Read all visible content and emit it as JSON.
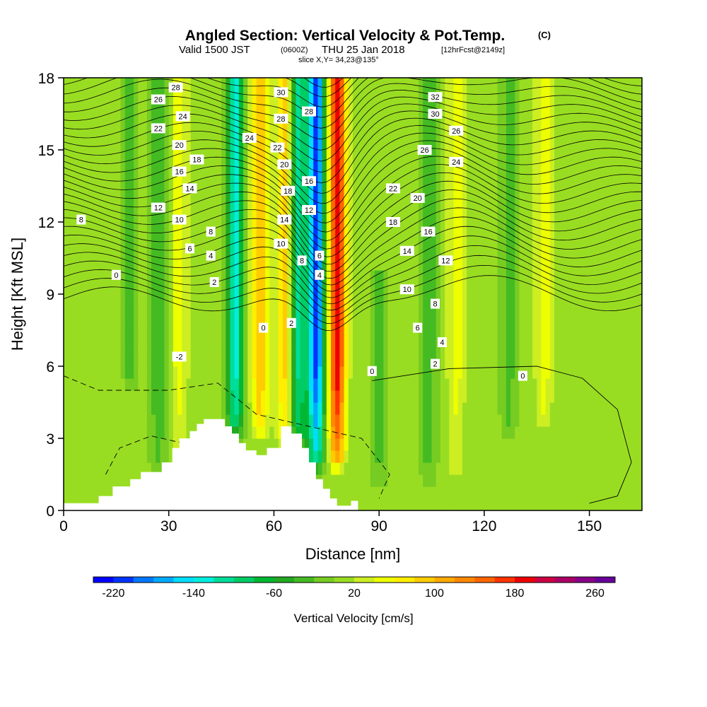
{
  "chart_data": {
    "type": "heatmap",
    "title": "Angled Section: Vertical Velocity & Pot.Temp.",
    "title_unit": "(C)",
    "subtitle_main": "Valid 1500 JST",
    "subtitle_zulu": "(0600Z)",
    "subtitle_date": "THU 25 Jan 2018",
    "subtitle_fcst": "[12hrFcst@2149z]",
    "subtitle_slice": "slice X,Y= 34,23@135°",
    "xlabel": "Distance [nm]",
    "ylabel": "Height [Kft MSL]",
    "xlim": [
      0,
      165
    ],
    "ylim": [
      0,
      18
    ],
    "x_ticks": [
      0,
      30,
      60,
      90,
      120,
      150
    ],
    "y_ticks": [
      0,
      3,
      6,
      9,
      12,
      15,
      18
    ],
    "colorbar": {
      "label": "Vertical Velocity [cm/s]",
      "min": -240,
      "max": 280,
      "step": 20,
      "tick_values": [
        -220,
        -140,
        -60,
        20,
        100,
        180,
        260
      ],
      "colors": [
        "#0000ff",
        "#0033ff",
        "#0077ff",
        "#00aaff",
        "#00ddff",
        "#00eedd",
        "#00dd99",
        "#00cc66",
        "#00b833",
        "#22aa22",
        "#44bb22",
        "#77cc22",
        "#99dd22",
        "#ccee22",
        "#eeff00",
        "#ffee00",
        "#ffcc00",
        "#ffaa00",
        "#ff8800",
        "#ff6600",
        "#ff3300",
        "#ee0000",
        "#cc0044",
        "#aa0066",
        "#880088",
        "#660099"
      ]
    },
    "velocity_features": [
      {
        "x": 72,
        "y_bottom": 2.5,
        "y_top": 18,
        "peak": -220
      },
      {
        "x": 78,
        "y_bottom": 2.5,
        "y_top": 18,
        "peak": 190
      },
      {
        "x": 49,
        "y_bottom": 3.8,
        "y_top": 18,
        "peak": -140
      },
      {
        "x": 56,
        "y_bottom": 3.8,
        "y_top": 18,
        "peak": 90
      },
      {
        "x": 67,
        "y_bottom": 3.5,
        "y_top": 18,
        "peak": -120
      },
      {
        "x": 63,
        "y_bottom": 3.5,
        "y_top": 18,
        "peak": 80
      },
      {
        "x": 27,
        "y_bottom": 2.5,
        "y_top": 18,
        "peak": -50
      },
      {
        "x": 33,
        "y_bottom": 2.5,
        "y_top": 18,
        "peak": 40
      },
      {
        "x": 19,
        "y_bottom": 6,
        "y_top": 18,
        "peak": -40
      },
      {
        "x": 90,
        "y_bottom": 2,
        "y_top": 10,
        "peak": -50
      },
      {
        "x": 104,
        "y_bottom": 2,
        "y_top": 18,
        "peak": -50
      },
      {
        "x": 112,
        "y_bottom": 2,
        "y_top": 18,
        "peak": 40
      },
      {
        "x": 127,
        "y_bottom": 4,
        "y_top": 18,
        "peak": -40
      },
      {
        "x": 137,
        "y_bottom": 4,
        "y_top": 18,
        "peak": 40
      }
    ],
    "terrain_profile": [
      [
        0,
        0.3
      ],
      [
        10,
        0.3
      ],
      [
        10,
        0.6
      ],
      [
        14,
        0.6
      ],
      [
        14,
        1.0
      ],
      [
        19,
        1.0
      ],
      [
        19,
        1.3
      ],
      [
        22,
        1.3
      ],
      [
        22,
        1.6
      ],
      [
        28,
        1.6
      ],
      [
        28,
        2.0
      ],
      [
        31,
        2.0
      ],
      [
        31,
        2.6
      ],
      [
        33,
        2.6
      ],
      [
        33,
        3.0
      ],
      [
        36,
        3.0
      ],
      [
        36,
        3.3
      ],
      [
        38,
        3.3
      ],
      [
        38,
        3.6
      ],
      [
        40,
        3.6
      ],
      [
        40,
        3.8
      ],
      [
        46,
        3.8
      ],
      [
        46,
        3.5
      ],
      [
        48,
        3.5
      ],
      [
        48,
        3.2
      ],
      [
        50,
        3.2
      ],
      [
        50,
        2.8
      ],
      [
        52,
        2.8
      ],
      [
        52,
        2.5
      ],
      [
        55,
        2.5
      ],
      [
        55,
        2.3
      ],
      [
        58,
        2.3
      ],
      [
        58,
        2.6
      ],
      [
        62,
        2.6
      ],
      [
        62,
        3.5
      ],
      [
        65,
        3.5
      ],
      [
        65,
        3.2
      ],
      [
        68,
        3.2
      ],
      [
        68,
        2.6
      ],
      [
        70,
        2.6
      ],
      [
        70,
        2.0
      ],
      [
        72,
        2.0
      ],
      [
        72,
        1.3
      ],
      [
        74,
        1.3
      ],
      [
        74,
        0.9
      ],
      [
        76,
        0.9
      ],
      [
        76,
        0.5
      ],
      [
        78,
        0.5
      ],
      [
        78,
        0.2
      ],
      [
        82,
        0.2
      ],
      [
        82,
        0.4
      ],
      [
        84,
        0.4
      ],
      [
        84,
        0
      ],
      [
        165,
        0
      ]
    ],
    "isotherm_labels": [
      {
        "text": "28",
        "x": 32,
        "y": 17.6
      },
      {
        "text": "26",
        "x": 27,
        "y": 17.1
      },
      {
        "text": "24",
        "x": 34,
        "y": 16.4
      },
      {
        "text": "22",
        "x": 27,
        "y": 15.9
      },
      {
        "text": "20",
        "x": 33,
        "y": 15.2
      },
      {
        "text": "18",
        "x": 38,
        "y": 14.6
      },
      {
        "text": "16",
        "x": 33,
        "y": 14.1
      },
      {
        "text": "14",
        "x": 36,
        "y": 13.4
      },
      {
        "text": "12",
        "x": 27,
        "y": 12.6
      },
      {
        "text": "10",
        "x": 33,
        "y": 12.1
      },
      {
        "text": "8",
        "x": 5,
        "y": 12.1
      },
      {
        "text": "8",
        "x": 42,
        "y": 11.6
      },
      {
        "text": "6",
        "x": 36,
        "y": 10.9
      },
      {
        "text": "4",
        "x": 42,
        "y": 10.6
      },
      {
        "text": "2",
        "x": 43,
        "y": 9.5
      },
      {
        "text": "0",
        "x": 15,
        "y": 9.8
      },
      {
        "text": "-2",
        "x": 33,
        "y": 6.4
      },
      {
        "text": "24",
        "x": 53,
        "y": 15.5
      },
      {
        "text": "30",
        "x": 62,
        "y": 17.4
      },
      {
        "text": "28",
        "x": 62,
        "y": 16.3
      },
      {
        "text": "28",
        "x": 70,
        "y": 16.6
      },
      {
        "text": "22",
        "x": 61,
        "y": 15.1
      },
      {
        "text": "20",
        "x": 63,
        "y": 14.4
      },
      {
        "text": "16",
        "x": 70,
        "y": 13.7
      },
      {
        "text": "18",
        "x": 64,
        "y": 13.3
      },
      {
        "text": "12",
        "x": 70,
        "y": 12.5
      },
      {
        "text": "14",
        "x": 63,
        "y": 12.1
      },
      {
        "text": "10",
        "x": 62,
        "y": 11.1
      },
      {
        "text": "8",
        "x": 68,
        "y": 10.4
      },
      {
        "text": "6",
        "x": 73,
        "y": 10.6
      },
      {
        "text": "4",
        "x": 73,
        "y": 9.8
      },
      {
        "text": "2",
        "x": 65,
        "y": 7.8
      },
      {
        "text": "0",
        "x": 57,
        "y": 7.6
      },
      {
        "text": "0",
        "x": 88,
        "y": 5.8
      },
      {
        "text": "32",
        "x": 106,
        "y": 17.2
      },
      {
        "text": "30",
        "x": 106,
        "y": 16.5
      },
      {
        "text": "26",
        "x": 112,
        "y": 15.8
      },
      {
        "text": "26",
        "x": 103,
        "y": 15.0
      },
      {
        "text": "24",
        "x": 112,
        "y": 14.5
      },
      {
        "text": "22",
        "x": 94,
        "y": 13.4
      },
      {
        "text": "20",
        "x": 101,
        "y": 13.0
      },
      {
        "text": "18",
        "x": 94,
        "y": 12.0
      },
      {
        "text": "16",
        "x": 104,
        "y": 11.6
      },
      {
        "text": "14",
        "x": 98,
        "y": 10.8
      },
      {
        "text": "12",
        "x": 109,
        "y": 10.4
      },
      {
        "text": "10",
        "x": 98,
        "y": 9.2
      },
      {
        "text": "8",
        "x": 106,
        "y": 8.6
      },
      {
        "text": "6",
        "x": 101,
        "y": 7.6
      },
      {
        "text": "4",
        "x": 108,
        "y": 7.0
      },
      {
        "text": "2",
        "x": 106,
        "y": 6.1
      },
      {
        "text": "0",
        "x": 131,
        "y": 5.6
      }
    ]
  }
}
